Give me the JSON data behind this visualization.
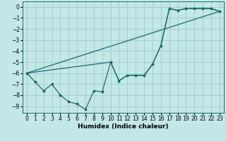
{
  "xlabel": "Humidex (Indice chaleur)",
  "background_color": "#c2e8e8",
  "grid_color": "#a0cccc",
  "line_color": "#1a6868",
  "xlim": [
    -0.5,
    23.5
  ],
  "ylim": [
    -9.6,
    0.5
  ],
  "xticks": [
    0,
    1,
    2,
    3,
    4,
    5,
    6,
    7,
    8,
    9,
    10,
    11,
    12,
    13,
    14,
    15,
    16,
    17,
    18,
    19,
    20,
    21,
    22,
    23
  ],
  "yticks": [
    0,
    -1,
    -2,
    -3,
    -4,
    -5,
    -6,
    -7,
    -8,
    -9
  ],
  "series1_x": [
    0,
    1,
    2,
    3,
    4,
    5,
    6,
    7,
    8,
    9,
    10,
    11,
    12,
    13,
    14,
    15,
    16,
    17,
    18,
    19,
    20,
    21,
    22,
    23
  ],
  "series1_y": [
    -6.0,
    -6.8,
    -7.6,
    -7.0,
    -8.0,
    -8.6,
    -8.8,
    -9.3,
    -7.6,
    -7.7,
    -5.0,
    -6.7,
    -6.2,
    -6.2,
    -6.2,
    -5.2,
    -3.5,
    -0.15,
    -0.3,
    -0.15,
    -0.15,
    -0.15,
    -0.15,
    -0.4
  ],
  "series2_x": [
    0,
    23
  ],
  "series2_y": [
    -6.0,
    -0.4
  ],
  "series3_x": [
    0,
    10,
    11,
    12,
    13,
    14,
    15,
    16,
    17,
    18,
    19,
    20,
    21,
    22,
    23
  ],
  "series3_y": [
    -6.0,
    -5.0,
    -6.7,
    -6.2,
    -6.2,
    -6.2,
    -5.2,
    -3.5,
    -0.15,
    -0.3,
    -0.15,
    -0.15,
    -0.15,
    -0.15,
    -0.4
  ]
}
